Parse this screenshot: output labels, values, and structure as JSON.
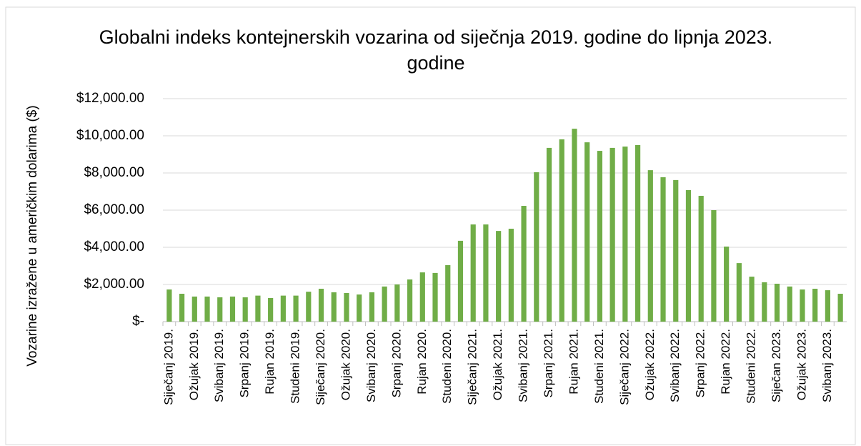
{
  "chart_data": {
    "type": "bar",
    "title": "Globalni indeks kontejnerskih vozarina od siječnja 2019. godine do lipnja 2023. godine",
    "y_label": "Vozarine izražene u američkim dolarima ($)",
    "categories": [
      "Siječanj 2019.",
      null,
      "Ožujak 2019.",
      null,
      "Svibanj 2019.",
      null,
      "Srpanj 2019.",
      null,
      "Rujan 2019.",
      null,
      "Studeni 2019.",
      null,
      "Siječanj 2020.",
      null,
      "Ožujak 2020.",
      null,
      "Svibanj 2020.",
      null,
      "Srpanj 2020.",
      null,
      "Rujan 2020.",
      null,
      "Studeni 2020.",
      null,
      "Siječanj 2021.",
      null,
      "Ožujak 2021.",
      null,
      "Svibanj 2021.",
      null,
      "Srpanj 2021.",
      null,
      "Rujan 2021.",
      null,
      "Studeni 2021.",
      null,
      "Siječanj 2022.",
      null,
      "Ožujak 2022.",
      null,
      "Svibanj 2022.",
      null,
      "Srpanj 2022.",
      null,
      "Rujan 2022.",
      null,
      "Studeni 2022.",
      null,
      "Siječan 2023.",
      null,
      "Ožujak 2023.",
      null,
      "Svibanj 2023.",
      null
    ],
    "values": [
      1730,
      1500,
      1350,
      1350,
      1310,
      1350,
      1310,
      1400,
      1270,
      1400,
      1400,
      1610,
      1770,
      1580,
      1540,
      1460,
      1580,
      1890,
      2000,
      2270,
      2650,
      2620,
      3040,
      4350,
      5230,
      5230,
      4880,
      5000,
      6230,
      8040,
      9350,
      9810,
      10380,
      9650,
      9190,
      9350,
      9420,
      9500,
      8150,
      7770,
      7620,
      7080,
      6770,
      6000,
      4040,
      3150,
      2420,
      2120,
      2040,
      1890,
      1730,
      1770,
      1690,
      1500
    ],
    "color": "#70ad47",
    "ylim": [
      0,
      12000
    ],
    "yticks": [
      {
        "value": 0,
        "label": "$-"
      },
      {
        "value": 2000,
        "label": "$2,000.00"
      },
      {
        "value": 4000,
        "label": "$4,000.00"
      },
      {
        "value": 6000,
        "label": "$6,000.00"
      },
      {
        "value": 8000,
        "label": "$8,000.00"
      },
      {
        "value": 10000,
        "label": "$10,000.00"
      },
      {
        "value": 12000,
        "label": "$12,000.00"
      }
    ],
    "grid": true
  }
}
